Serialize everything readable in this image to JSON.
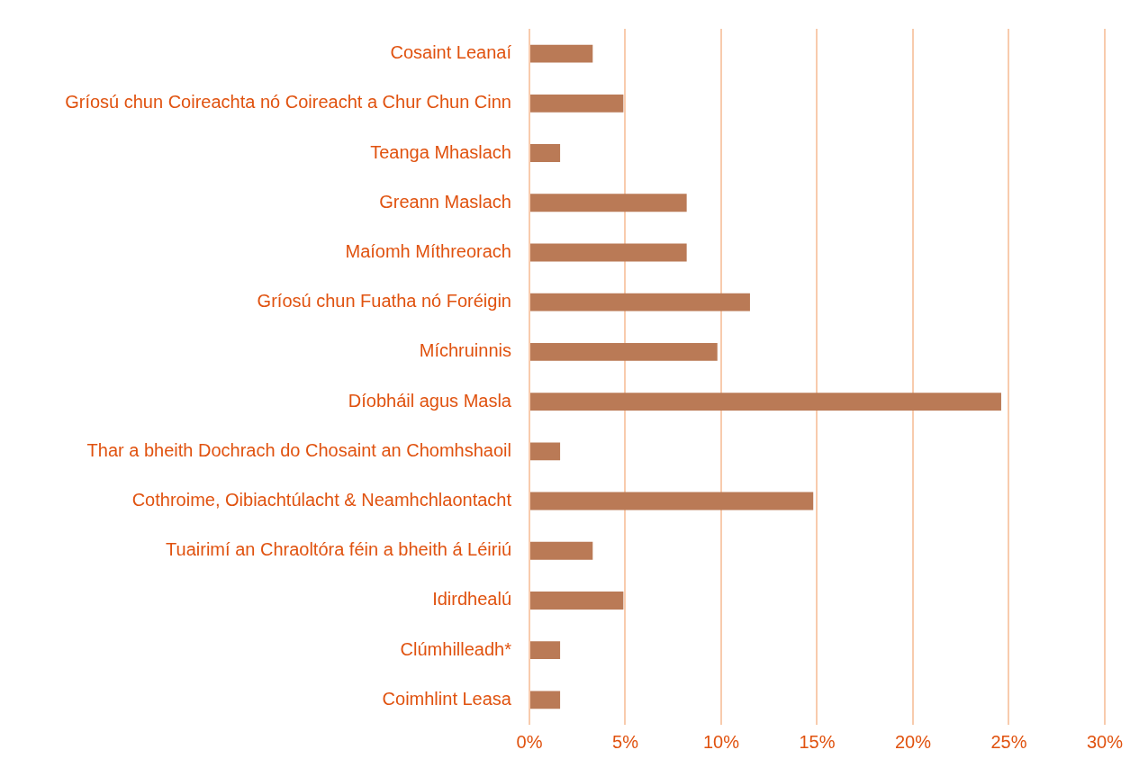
{
  "chart_data": {
    "type": "bar",
    "orientation": "horizontal",
    "categories": [
      "Cosaint Leanaí",
      "Gríosú chun Coireachta nó Coireacht a Chur Chun Cinn",
      "Teanga Mhaslach",
      "Greann Maslach",
      "Maíomh Míthreorach",
      "Gríosú chun Fuatha nó Foréigin",
      "Míchruinnis",
      "Díobháil agus Masla",
      "Thar a bheith Dochrach do Chosaint an Chomhshaoil",
      "Cothroime, Oibiachtúlacht & Neamhchlaontacht",
      "Tuairimí an Chraoltóra féin a bheith á Léiriú",
      "Idirdhealú",
      "Clúmhilleadh*",
      "Coimhlint Leasa"
    ],
    "values": [
      3.3,
      4.9,
      1.6,
      8.2,
      8.2,
      11.5,
      9.8,
      24.6,
      1.6,
      14.8,
      3.3,
      4.9,
      1.6,
      1.6
    ],
    "color": "#ba7a56",
    "xlim": [
      0,
      30
    ],
    "xticks": [
      {
        "value": 0,
        "label": "0%"
      },
      {
        "value": 5,
        "label": "5%"
      },
      {
        "value": 10,
        "label": "10%"
      },
      {
        "value": 15,
        "label": "15%"
      },
      {
        "value": 20,
        "label": "20%"
      },
      {
        "value": 25,
        "label": "25%"
      },
      {
        "value": 30,
        "label": "30%"
      }
    ],
    "grid": "x",
    "legend": false
  }
}
